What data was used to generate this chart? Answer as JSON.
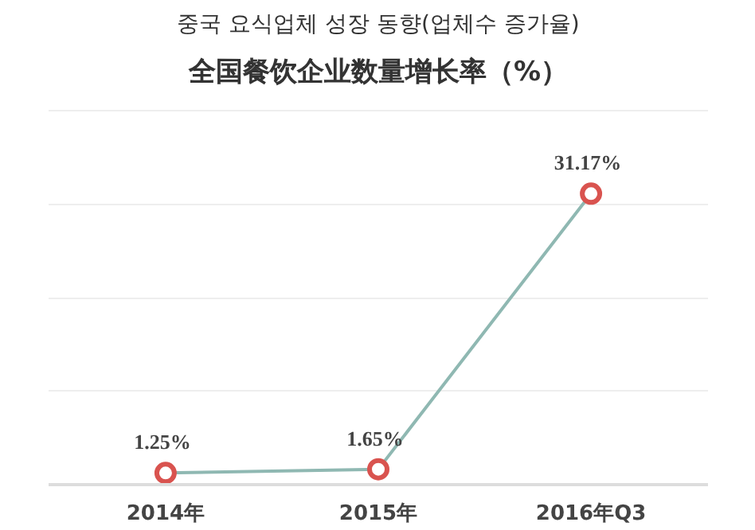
{
  "chart_data": {
    "type": "line",
    "title": "중국 요식업체 성장 동향(업체수 증가율)",
    "subtitle": "全国餐饮企业数量增长率（%）",
    "categories": [
      "2014年",
      "2015年",
      "2016年Q3"
    ],
    "series": [
      {
        "color": "#8fb8b2",
        "values": [
          1.25,
          1.65,
          31.17
        ],
        "value_labels": [
          "1.25%",
          "1.65%",
          "31.17%"
        ]
      }
    ],
    "yticks": [
      {
        "value": 0,
        "label": null
      },
      {
        "value": 10,
        "label": null
      },
      {
        "value": 20,
        "label": null
      },
      {
        "value": 30,
        "label": null
      },
      {
        "value": 40,
        "label": null
      }
    ],
    "tick_labels": "x",
    "grid": "y",
    "marker": "circle",
    "line_style": "solid"
  }
}
